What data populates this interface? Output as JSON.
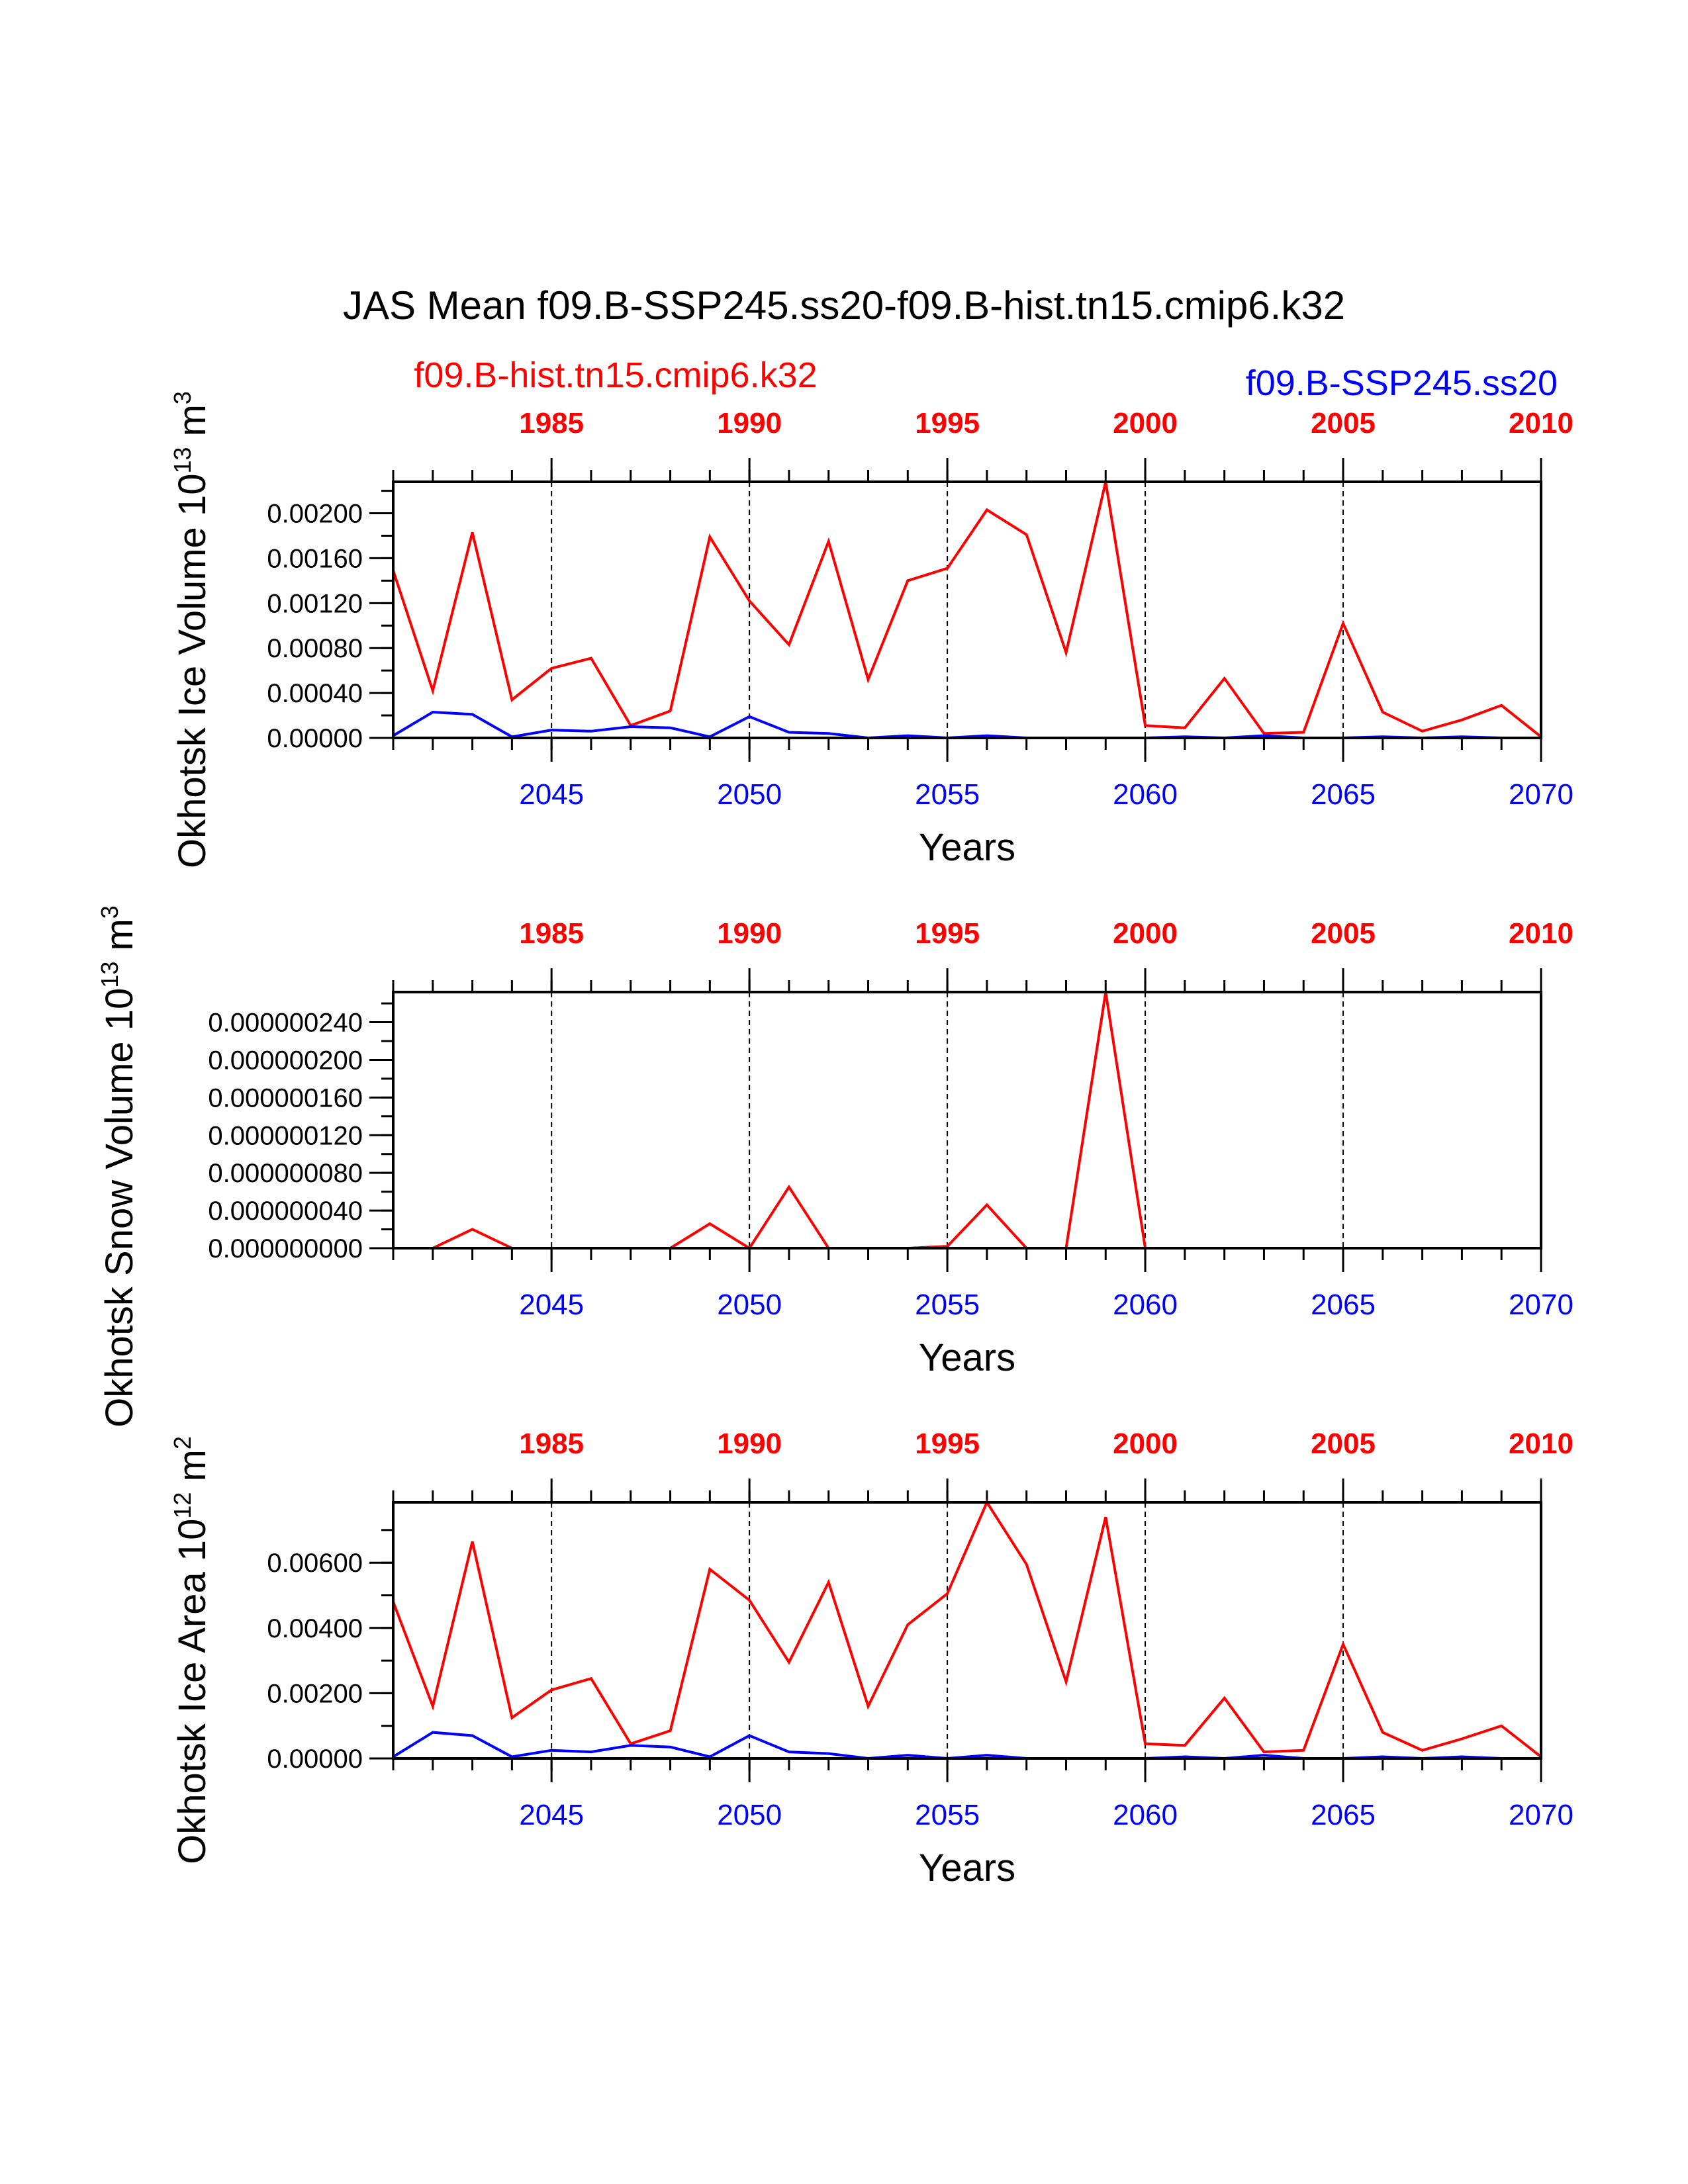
{
  "title": "JAS Mean f09.B-SSP245.ss20-f09.B-hist.tn15.cmip6.k32",
  "legend": {
    "left": {
      "label": "f09.B-hist.tn15.cmip6.k32",
      "color": "#ff0000"
    },
    "right": {
      "label": "f09.B-SSP245.ss20",
      "color": "#0000ff"
    }
  },
  "colors": {
    "hist": "#ff0000",
    "ssp": "#0000ff",
    "axis": "#000000"
  },
  "chart_data": [
    {
      "type": "line",
      "ylabel": {
        "main": "Okhotsk Ice Volume 10",
        "exp": "13",
        "unit": " m",
        "unit_exp": "3"
      },
      "xlabel": "Years",
      "top_axis": {
        "range": [
          1981,
          2010
        ],
        "ticks": [
          "1985",
          "1990",
          "1995",
          "2000",
          "2005",
          "2010"
        ]
      },
      "bottom_axis": {
        "range": [
          2041,
          2070
        ],
        "ticks": [
          "2045",
          "2050",
          "2055",
          "2060",
          "2065",
          "2070"
        ]
      },
      "ylim": [
        0,
        0.00228
      ],
      "yticks": [
        "0.00000",
        "0.00040",
        "0.00080",
        "0.00120",
        "0.00160",
        "0.00200"
      ],
      "ytick_values": [
        0,
        0.0004,
        0.0008,
        0.0012,
        0.0016,
        0.002
      ],
      "series": [
        {
          "name": "f09.B-hist.tn15.cmip6.k32",
          "x": [
            1981,
            1982,
            1983,
            1984,
            1985,
            1986,
            1987,
            1988,
            1989,
            1990,
            1991,
            1992,
            1993,
            1994,
            1995,
            1996,
            1997,
            1998,
            1999,
            2000,
            2001,
            2002,
            2003,
            2004,
            2005,
            2006,
            2007,
            2008,
            2009,
            2010
          ],
          "values": [
            0.00149,
            0.00042,
            0.00183,
            0.00034,
            0.00062,
            0.00071,
            0.00011,
            0.00024,
            0.00179,
            0.00122,
            0.00083,
            0.00175,
            0.00052,
            0.0014,
            0.00151,
            0.00203,
            0.00181,
            0.00076,
            0.00228,
            0.00011,
            9e-05,
            0.00053,
            4e-05,
            5e-05,
            0.00102,
            0.00023,
            6e-05,
            0.00016,
            0.00029,
            1e-05
          ]
        },
        {
          "name": "f09.B-SSP245.ss20",
          "x": [
            2041,
            2042,
            2043,
            2044,
            2045,
            2046,
            2047,
            2048,
            2049,
            2050,
            2051,
            2052,
            2053,
            2054,
            2055,
            2056,
            2057,
            2058,
            2059,
            2060,
            2061,
            2062,
            2063,
            2064,
            2065,
            2066,
            2067,
            2068,
            2069,
            2070
          ],
          "values": [
            2e-05,
            0.00023,
            0.00021,
            1e-05,
            7e-05,
            6e-05,
            0.0001,
            9e-05,
            1e-05,
            0.00019,
            5e-05,
            4e-05,
            0.0,
            2e-05,
            0.0,
            2e-05,
            0.0,
            0.0,
            0.0,
            0.0,
            1e-05,
            0.0,
            2e-05,
            0.0,
            0.0,
            1e-05,
            0.0,
            1e-05,
            0.0,
            0.0
          ]
        }
      ]
    },
    {
      "type": "line",
      "ylabel": {
        "main": "Okhotsk Snow Volume 10",
        "exp": "13",
        "unit": " m",
        "unit_exp": "3"
      },
      "xlabel": "Years",
      "top_axis": {
        "range": [
          1981,
          2010
        ],
        "ticks": [
          "1985",
          "1990",
          "1995",
          "2000",
          "2005",
          "2010"
        ]
      },
      "bottom_axis": {
        "range": [
          2041,
          2070
        ],
        "ticks": [
          "2045",
          "2050",
          "2055",
          "2060",
          "2065",
          "2070"
        ]
      },
      "ylim": [
        0,
        2.72e-07
      ],
      "yticks": [
        "0.000000000",
        "0.000000040",
        "0.000000080",
        "0.000000120",
        "0.000000160",
        "0.000000200",
        "0.000000240"
      ],
      "ytick_values": [
        0,
        4e-08,
        8e-08,
        1.2e-07,
        1.6e-07,
        2e-07,
        2.4e-07
      ],
      "series": [
        {
          "name": "f09.B-hist.tn15.cmip6.k32",
          "x": [
            1981,
            1982,
            1983,
            1984,
            1985,
            1986,
            1987,
            1988,
            1989,
            1990,
            1991,
            1992,
            1993,
            1994,
            1995,
            1996,
            1997,
            1998,
            1999,
            2000,
            2001,
            2002,
            2003,
            2004,
            2005,
            2006,
            2007,
            2008,
            2009,
            2010
          ],
          "values": [
            0,
            0,
            2e-08,
            0,
            0,
            0,
            0,
            0,
            2.6e-08,
            0,
            6.5e-08,
            0,
            0,
            0,
            2e-09,
            4.6e-08,
            0,
            0,
            2.72e-07,
            0,
            0,
            0,
            0,
            0,
            0,
            0,
            0,
            0,
            0,
            0
          ]
        },
        {
          "name": "f09.B-SSP245.ss20",
          "x": [
            2041,
            2042,
            2043,
            2044,
            2045,
            2046,
            2047,
            2048,
            2049,
            2050,
            2051,
            2052,
            2053,
            2054,
            2055,
            2056,
            2057,
            2058,
            2059,
            2060,
            2061,
            2062,
            2063,
            2064,
            2065,
            2066,
            2067,
            2068,
            2069,
            2070
          ],
          "values": [
            0,
            0,
            0,
            0,
            0,
            0,
            0,
            0,
            0,
            0,
            0,
            0,
            0,
            0,
            0,
            0,
            0,
            0,
            0,
            0,
            0,
            0,
            0,
            0,
            0,
            0,
            0,
            0,
            0,
            0
          ]
        }
      ]
    },
    {
      "type": "line",
      "ylabel": {
        "main": "Okhotsk Ice Area 10",
        "exp": "12",
        "unit": " m",
        "unit_exp": "2"
      },
      "xlabel": "Years",
      "top_axis": {
        "range": [
          1981,
          2010
        ],
        "ticks": [
          "1985",
          "1990",
          "1995",
          "2000",
          "2005",
          "2010"
        ]
      },
      "bottom_axis": {
        "range": [
          2041,
          2070
        ],
        "ticks": [
          "2045",
          "2050",
          "2055",
          "2060",
          "2065",
          "2070"
        ]
      },
      "ylim": [
        0,
        0.00785
      ],
      "yticks": [
        "0.00000",
        "0.00200",
        "0.00400",
        "0.00600"
      ],
      "ytick_values": [
        0,
        0.002,
        0.004,
        0.006
      ],
      "series": [
        {
          "name": "f09.B-hist.tn15.cmip6.k32",
          "x": [
            1981,
            1982,
            1983,
            1984,
            1985,
            1986,
            1987,
            1988,
            1989,
            1990,
            1991,
            1992,
            1993,
            1994,
            1995,
            1996,
            1997,
            1998,
            1999,
            2000,
            2001,
            2002,
            2003,
            2004,
            2005,
            2006,
            2007,
            2008,
            2009,
            2010
          ],
          "values": [
            0.0048,
            0.0016,
            0.00665,
            0.00125,
            0.0021,
            0.00245,
            0.00045,
            0.00085,
            0.0058,
            0.00485,
            0.00295,
            0.0054,
            0.0016,
            0.0041,
            0.00505,
            0.00785,
            0.00595,
            0.00235,
            0.0074,
            0.00045,
            0.0004,
            0.00185,
            0.0002,
            0.00025,
            0.0035,
            0.0008,
            0.00025,
            0.0006,
            0.001,
            5e-05
          ]
        },
        {
          "name": "f09.B-SSP245.ss20",
          "x": [
            2041,
            2042,
            2043,
            2044,
            2045,
            2046,
            2047,
            2048,
            2049,
            2050,
            2051,
            2052,
            2053,
            2054,
            2055,
            2056,
            2057,
            2058,
            2059,
            2060,
            2061,
            2062,
            2063,
            2064,
            2065,
            2066,
            2067,
            2068,
            2069,
            2070
          ],
          "values": [
            5e-05,
            0.0008,
            0.0007,
            5e-05,
            0.00025,
            0.0002,
            0.0004,
            0.00035,
            5e-05,
            0.0007,
            0.0002,
            0.00015,
            0.0,
            0.0001,
            0.0,
            0.0001,
            0.0,
            0.0,
            0.0,
            0.0,
            5e-05,
            0.0,
            0.0001,
            0.0,
            0.0,
            5e-05,
            0.0,
            5e-05,
            0.0,
            0.0
          ]
        }
      ]
    }
  ]
}
